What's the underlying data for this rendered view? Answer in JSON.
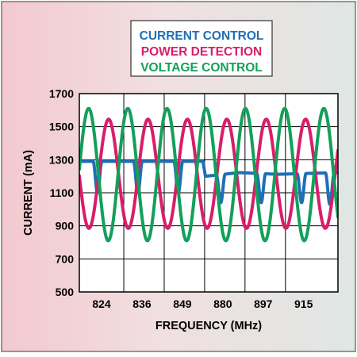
{
  "chart_data": {
    "type": "line",
    "title": "",
    "xlabel": "FREQUENCY (MHz)",
    "ylabel": "CURRENT (mA)",
    "ylim": [
      500,
      1700
    ],
    "yticks": [
      500,
      700,
      900,
      1100,
      1300,
      1500,
      1700
    ],
    "xlim": [
      0,
      6.4
    ],
    "x_tick_labels": [
      "824",
      "836",
      "849",
      "880",
      "897",
      "915"
    ],
    "legend_position": "top-center",
    "grid": true,
    "series": [
      {
        "name": "CURRENT CONTROL",
        "color": "#1f6fb5",
        "baseline": [
          [
            0,
            1290
          ],
          [
            3.06,
            1290
          ],
          [
            3.12,
            1200
          ],
          [
            3.95,
            1222
          ],
          [
            4.9,
            1212
          ],
          [
            6.4,
            1222
          ]
        ],
        "dips": [
          {
            "x": 0.45,
            "min": 1100,
            "width": 0.22
          },
          {
            "x": 1.45,
            "min": 1100,
            "width": 0.22
          },
          {
            "x": 2.45,
            "min": 1100,
            "width": 0.22
          },
          {
            "x": 3.5,
            "min": 1040,
            "width": 0.22
          },
          {
            "x": 4.5,
            "min": 1040,
            "width": 0.22
          },
          {
            "x": 5.5,
            "min": 1040,
            "width": 0.22
          },
          {
            "x": 6.2,
            "min": 1030,
            "width": 0.22
          }
        ]
      },
      {
        "name": "POWER DETECTION",
        "color": "#d81e6a",
        "center": 1215,
        "amplitude": 330,
        "period": 0.975,
        "phase_offset": -0.25,
        "x_start": 0,
        "x_end": 6.4
      },
      {
        "name": "VOLTAGE CONTROL",
        "color": "#12a05a",
        "center": 1210,
        "amplitude": 400,
        "period": 0.97,
        "phase_offset": 0.23,
        "x_start": 0,
        "x_end": 6.4
      }
    ]
  }
}
